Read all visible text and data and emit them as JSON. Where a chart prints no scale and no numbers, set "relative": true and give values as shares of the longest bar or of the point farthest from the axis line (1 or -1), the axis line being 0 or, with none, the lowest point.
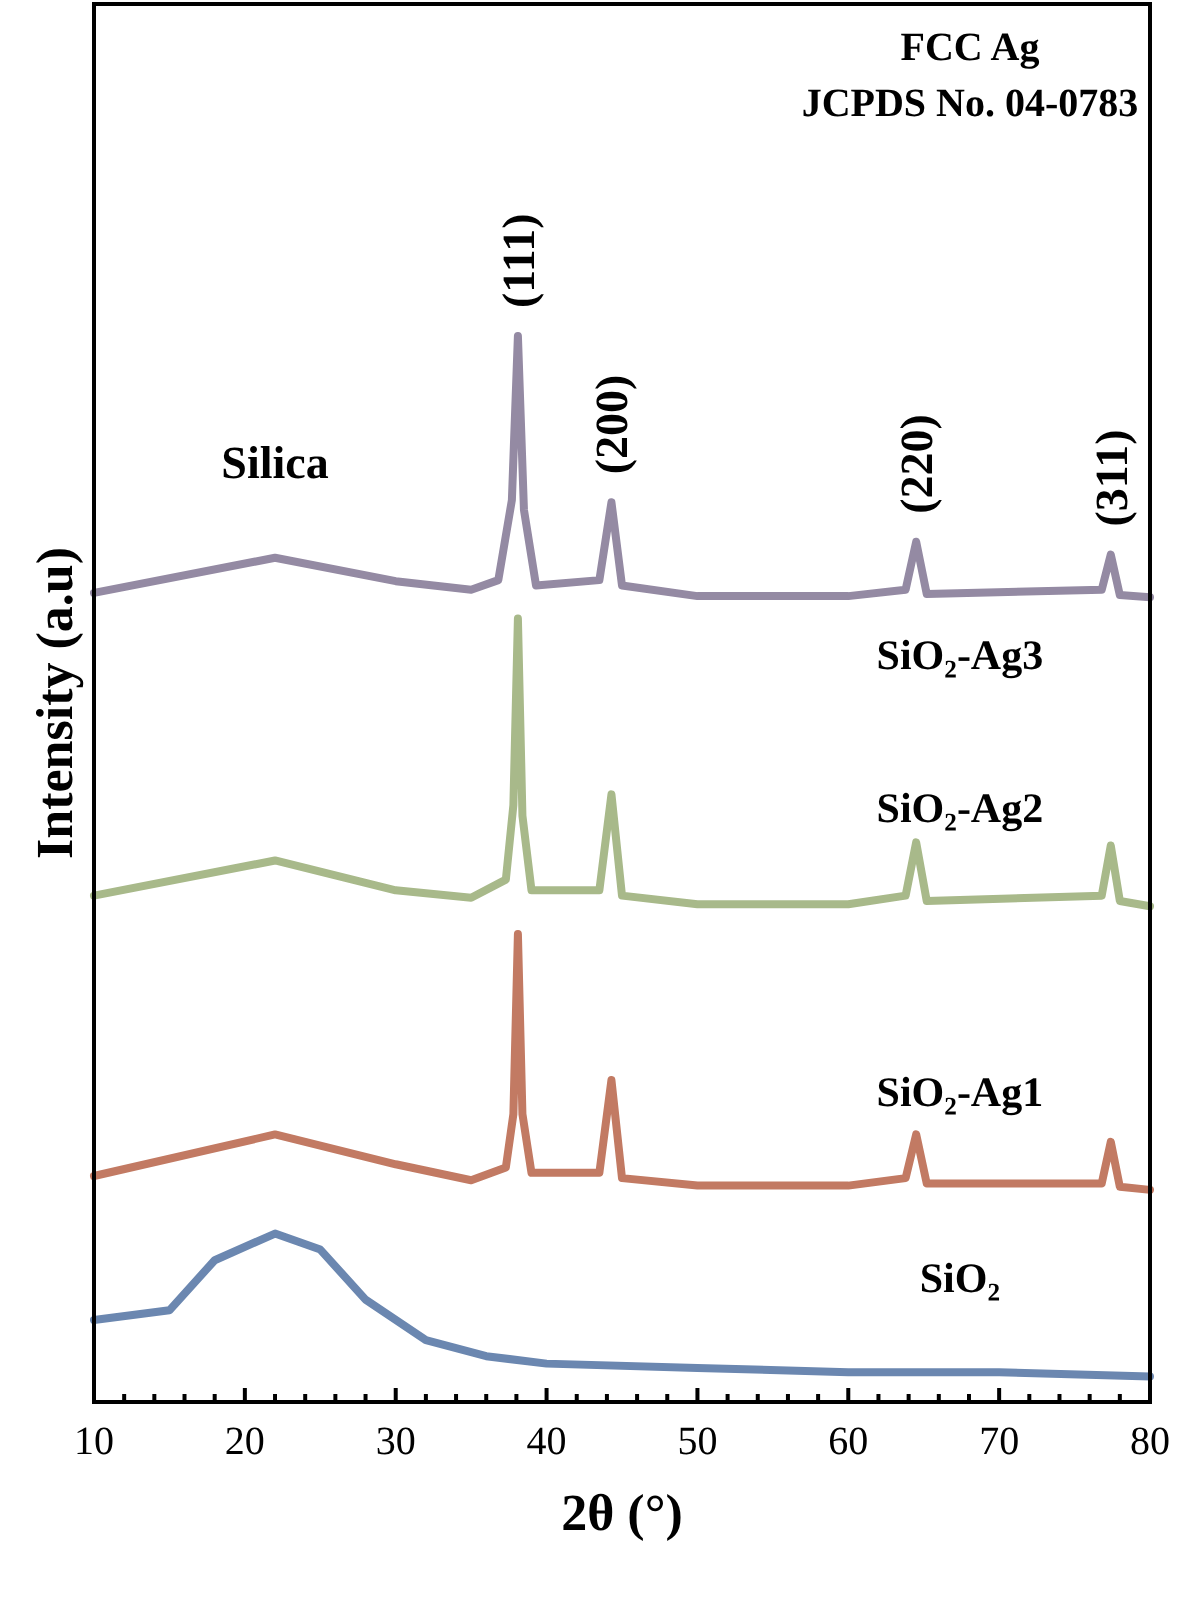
{
  "chart_data": {
    "type": "line",
    "relative": true,
    "xlabel": "2θ (°)",
    "ylabel": "Intensity (a.u)",
    "xlim": [
      10,
      80
    ],
    "xticks": [
      10,
      20,
      30,
      40,
      50,
      60,
      70,
      80
    ],
    "line_style": "solid",
    "series": [
      {
        "name": "SiO₂",
        "color": "#6b87b0",
        "x": [
          10,
          15,
          18,
          22,
          25,
          28,
          32,
          36,
          40,
          50,
          60,
          70,
          80
        ],
        "values": [
          0.077,
          0.086,
          0.133,
          0.158,
          0.143,
          0.096,
          0.058,
          0.043,
          0.036,
          0.032,
          0.028,
          0.028,
          0.024
        ]
      },
      {
        "name": "SiO₂-Ag1",
        "color": "#c27a63",
        "x": [
          10,
          22,
          30,
          35,
          37.3,
          37.8,
          38.1,
          38.4,
          39,
          43.5,
          44.3,
          45,
          50,
          60,
          63.8,
          64.5,
          65.2,
          76.8,
          77.4,
          78,
          80
        ],
        "values": [
          0.212,
          0.251,
          0.223,
          0.208,
          0.22,
          0.27,
          0.439,
          0.27,
          0.215,
          0.215,
          0.302,
          0.21,
          0.203,
          0.203,
          0.21,
          0.251,
          0.205,
          0.205,
          0.244,
          0.202,
          0.199
        ]
      },
      {
        "name": "SiO₂-Ag2",
        "color": "#a8b98a",
        "x": [
          10,
          22,
          30,
          35,
          37.3,
          37.8,
          38.1,
          38.4,
          39,
          43.5,
          44.3,
          45,
          50,
          60,
          63.8,
          64.5,
          65.2,
          76.8,
          77.4,
          78,
          80
        ],
        "values": [
          0.475,
          0.508,
          0.48,
          0.473,
          0.49,
          0.56,
          0.735,
          0.55,
          0.48,
          0.48,
          0.57,
          0.475,
          0.467,
          0.467,
          0.475,
          0.525,
          0.47,
          0.475,
          0.522,
          0.47,
          0.465
        ]
      },
      {
        "name": "SiO₂-Ag3",
        "color": "#948aa3",
        "x": [
          10,
          22,
          30,
          35,
          36.8,
          37.7,
          38.1,
          38.5,
          39.3,
          43.5,
          44.3,
          45,
          50,
          60,
          63.8,
          64.5,
          65.2,
          76.8,
          77.4,
          78,
          80
        ],
        "values": [
          0.759,
          0.792,
          0.77,
          0.762,
          0.771,
          0.846,
          1.0,
          0.837,
          0.766,
          0.771,
          0.844,
          0.766,
          0.756,
          0.756,
          0.762,
          0.807,
          0.758,
          0.762,
          0.795,
          0.757,
          0.755
        ]
      }
    ],
    "annotations": [
      {
        "text": "Silica",
        "x": 22,
        "y": 0.792
      },
      {
        "text": "(111)",
        "x": 38.1,
        "y": 1.0
      },
      {
        "text": "(200)",
        "x": 44.3,
        "y": 0.844
      },
      {
        "text": "(220)",
        "x": 64.5,
        "y": 0.807
      },
      {
        "text": "(311)",
        "x": 77.4,
        "y": 0.795
      },
      "FCC Ag",
      "JCPDS No. 04-0783"
    ]
  }
}
